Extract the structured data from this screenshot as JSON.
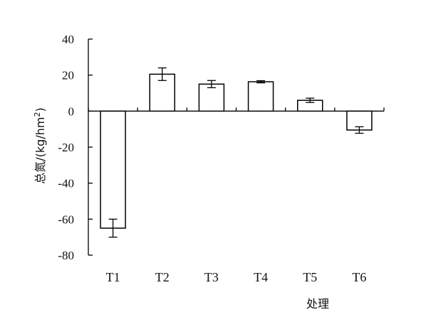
{
  "chart_data": {
    "type": "bar",
    "categories": [
      "T1",
      "T2",
      "T3",
      "T4",
      "T5",
      "T6"
    ],
    "values": [
      -65,
      20.5,
      15,
      16.3,
      6,
      -10.5
    ],
    "errors": [
      5,
      3.5,
      2,
      0.6,
      1.2,
      1.8
    ],
    "xlabel": "处理",
    "ylabel_main": "总氮/(kg/hm",
    "ylabel_sup": "2",
    "ylabel_end": ")",
    "ylim": [
      -80,
      40
    ],
    "yticks": [
      40,
      20,
      0,
      -20,
      -40,
      -60,
      -80
    ],
    "ytick_labels": [
      "40",
      "20",
      "0",
      "-20",
      "-40",
      "-60",
      "-80"
    ],
    "grid": false,
    "legend": "none",
    "colors": {
      "bar_fill": "#ffffff",
      "bar_stroke": "#000000",
      "axis": "#000000"
    }
  }
}
